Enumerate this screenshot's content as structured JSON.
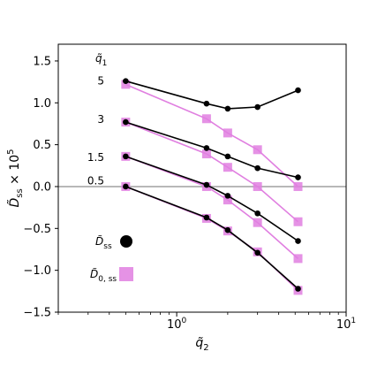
{
  "chart_data": {
    "type": "line",
    "x_scale": "log",
    "xlim": [
      0.2,
      10
    ],
    "ylim": [
      -1.5,
      1.7
    ],
    "xlabel": "q̃",
    "xlabel_sub": "2",
    "ylabel": "D̃ss × 10",
    "ylabel_sup": "5",
    "x_tick_labels": [
      {
        "value": 1,
        "base": "10",
        "exp": "0"
      },
      {
        "value": 10,
        "base": "10",
        "exp": "1"
      }
    ],
    "y_ticks": [
      -1.5,
      -1.0,
      -0.5,
      0.0,
      0.5,
      1.0,
      1.5
    ],
    "y_tick_labels": [
      "−1.5",
      "−1.0",
      "−0.5",
      "0.0",
      "0.5",
      "1.0",
      "1.5"
    ],
    "zero_line": 0,
    "annotation_title": {
      "text": "q̃",
      "sub": "1"
    },
    "annotations": [
      {
        "text": "5",
        "y": 1.26
      },
      {
        "text": "3",
        "y": 0.8
      },
      {
        "text": "1.5",
        "y": 0.35
      },
      {
        "text": "0.5",
        "y": 0.07
      }
    ],
    "legend": [
      {
        "label": "D̃",
        "sub": "ss",
        "marker": "circle",
        "color": "#000000"
      },
      {
        "label": "D̃",
        "sub": "0, ss",
        "marker": "square",
        "color": "#e07fe0"
      }
    ],
    "series": [
      {
        "q1": "5",
        "kind": "Dss",
        "color": "#000000",
        "x": [
          0.5,
          1.5,
          2,
          3,
          5.2
        ],
        "y": [
          1.26,
          0.99,
          0.93,
          0.95,
          1.15
        ]
      },
      {
        "q1": "5",
        "kind": "D0ss",
        "color": "#e07fe0",
        "x": [
          0.5,
          1.5,
          2,
          3,
          5.2
        ],
        "y": [
          1.22,
          0.81,
          0.64,
          0.44,
          0.0
        ]
      },
      {
        "q1": "3",
        "kind": "Dss",
        "color": "#000000",
        "x": [
          0.5,
          1.5,
          2,
          3,
          5.2
        ],
        "y": [
          0.77,
          0.46,
          0.36,
          0.22,
          0.11
        ]
      },
      {
        "q1": "3",
        "kind": "D0ss",
        "color": "#e07fe0",
        "x": [
          0.5,
          1.5,
          2,
          3,
          5.2
        ],
        "y": [
          0.77,
          0.39,
          0.23,
          0.0,
          -0.42
        ]
      },
      {
        "q1": "1.5",
        "kind": "Dss",
        "color": "#000000",
        "x": [
          0.5,
          1.5,
          2,
          3,
          5.2
        ],
        "y": [
          0.36,
          0.02,
          -0.11,
          -0.32,
          -0.65
        ]
      },
      {
        "q1": "1.5",
        "kind": "D0ss",
        "color": "#e07fe0",
        "x": [
          0.5,
          1.5,
          2,
          3,
          5.2
        ],
        "y": [
          0.36,
          0.0,
          -0.16,
          -0.43,
          -0.86
        ]
      },
      {
        "q1": "0.5",
        "kind": "Dss",
        "color": "#000000",
        "x": [
          0.5,
          1.5,
          2,
          3,
          5.2
        ],
        "y": [
          0.0,
          -0.37,
          -0.52,
          -0.79,
          -1.22
        ]
      },
      {
        "q1": "0.5",
        "kind": "D0ss",
        "color": "#e07fe0",
        "x": [
          0.5,
          1.5,
          2,
          3,
          5.2
        ],
        "y": [
          0.0,
          -0.38,
          -0.53,
          -0.78,
          -1.24
        ]
      }
    ]
  }
}
